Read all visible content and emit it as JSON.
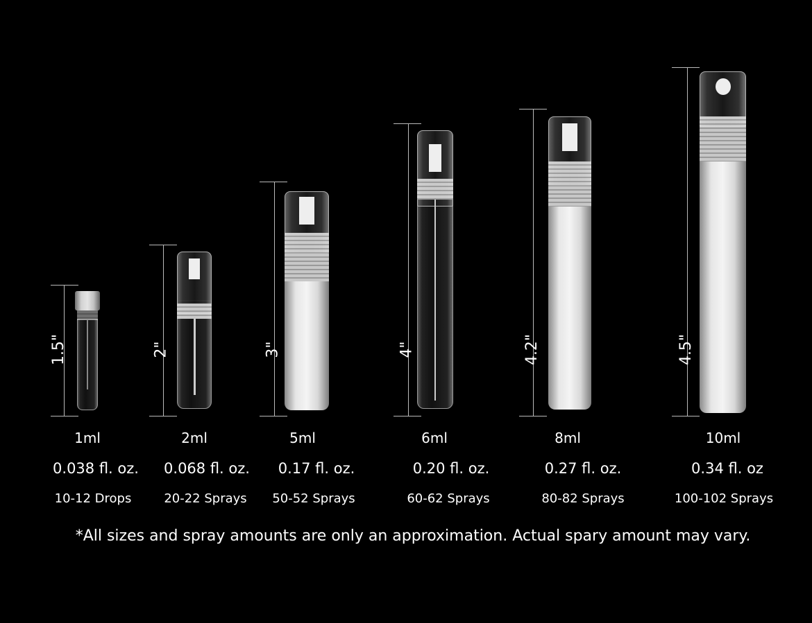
{
  "products": [
    {
      "height": "1.5\"",
      "volume": "1ml",
      "floz": "0.038 fl. oz.",
      "amount": "10-12 Drops"
    },
    {
      "height": "2\"",
      "volume": "2ml",
      "floz": "0.068 fl. oz.",
      "amount": "20-22 Sprays"
    },
    {
      "height": "3\"",
      "volume": "5ml",
      "floz": "0.17 fl. oz.",
      "amount": "50-52 Sprays"
    },
    {
      "height": "4\"",
      "volume": "6ml",
      "floz": "0.20 fl. oz.",
      "amount": "60-62 Sprays"
    },
    {
      "height": "4.2\"",
      "volume": "8ml",
      "floz": "0.27 fl. oz.",
      "amount": "80-82 Sprays"
    },
    {
      "height": "4.5\"",
      "volume": "10ml",
      "floz": "0.34 fl. oz",
      "amount": "100-102 Sprays"
    }
  ],
  "footnote": "*All sizes and spray amounts are only an approximation. Actual spary amount may vary.",
  "colors": {
    "background": "#000000",
    "text": "#ffffff"
  }
}
